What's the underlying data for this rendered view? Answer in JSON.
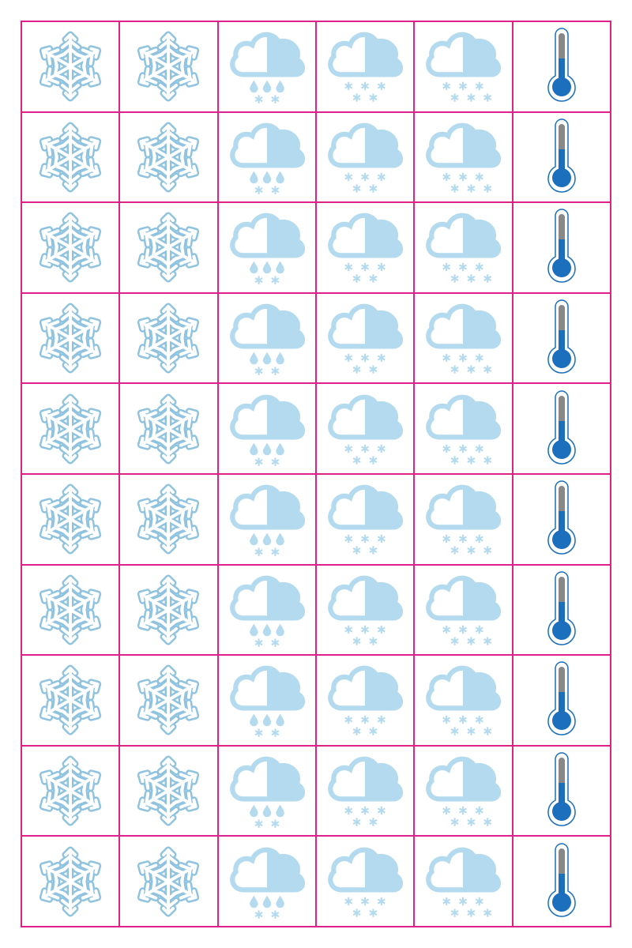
{
  "sheet": {
    "rows": 10,
    "columns": [
      {
        "icon": "snowflake-icon"
      },
      {
        "icon": "snowflake-icon"
      },
      {
        "icon": "cloud-sleet-icon"
      },
      {
        "icon": "cloud-heavy-snow-icon"
      },
      {
        "icon": "cloud-snow-icon"
      },
      {
        "icon": "thermometer-cold-icon"
      }
    ]
  },
  "colors": {
    "grid_line": "#e0218a",
    "ice_blue": "#a9d4ea",
    "ice_blue_outline": "#8fc3e0",
    "cloud_shade": "#b3daee",
    "thermometer_blue": "#1b6fbd",
    "thermometer_tube": "#888888",
    "background": "#ffffff"
  }
}
